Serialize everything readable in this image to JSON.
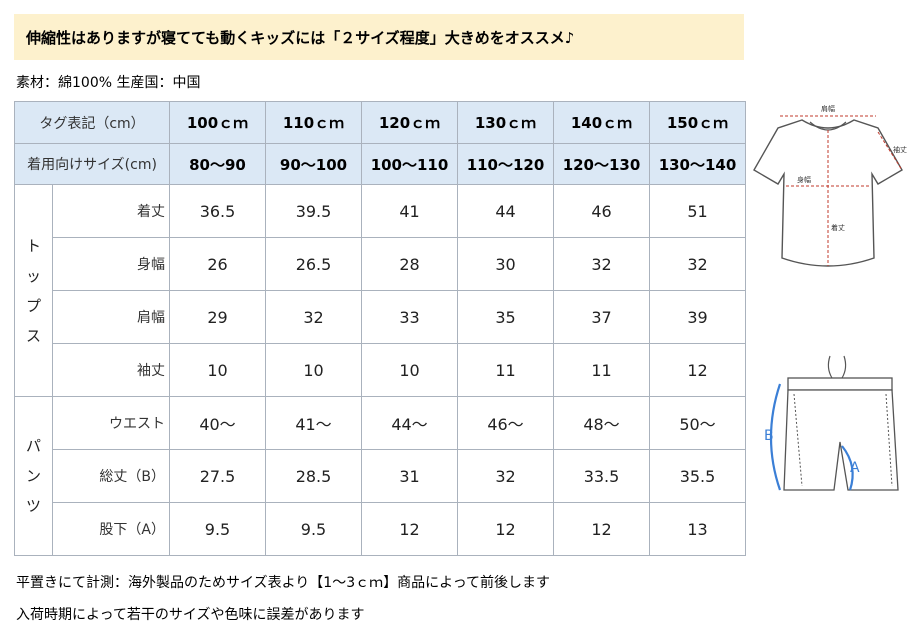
{
  "banner": {
    "text": "伸縮性はありますが寝てても動くキッズには「２サイズ程度」大きめをオススメ♪",
    "bg_color": "#fdf1cd"
  },
  "material_line": "素材：綿100%  生産国：中国",
  "table": {
    "header_bg_color": "#dbe8f5",
    "header_row": {
      "label": "タグ表記（cm）",
      "sizes": [
        "100ｃｍ",
        "110ｃｍ",
        "120ｃｍ",
        "130ｃｍ",
        "140ｃｍ",
        "150ｃｍ"
      ]
    },
    "fit_row": {
      "label": "着用向けサイズ(cm)",
      "values": [
        "80〜90",
        "90〜100",
        "100〜110",
        "110〜120",
        "120〜130",
        "130〜140"
      ]
    },
    "groups": [
      {
        "name": "トップス",
        "rows": [
          {
            "label": "着丈",
            "values": [
              "36.5",
              "39.5",
              "41",
              "44",
              "46",
              "51"
            ]
          },
          {
            "label": "身幅",
            "values": [
              "26",
              "26.5",
              "28",
              "30",
              "32",
              "32"
            ]
          },
          {
            "label": "肩幅",
            "values": [
              "29",
              "32",
              "33",
              "35",
              "37",
              "39"
            ]
          },
          {
            "label": "袖丈",
            "values": [
              "10",
              "10",
              "10",
              "11",
              "11",
              "12"
            ]
          }
        ]
      },
      {
        "name": "パンツ",
        "rows": [
          {
            "label": "ウエスト",
            "values": [
              "40〜",
              "41〜",
              "44〜",
              "46〜",
              "48〜",
              "50〜"
            ]
          },
          {
            "label": "総丈（B）",
            "values": [
              "27.5",
              "28.5",
              "31",
              "32",
              "33.5",
              "35.5"
            ]
          },
          {
            "label": "股下（A）",
            "values": [
              "9.5",
              "9.5",
              "12",
              "12",
              "12",
              "13"
            ]
          }
        ]
      }
    ]
  },
  "notes": [
    "平置きにて計測：海外製品のためサイズ表より【1〜3ｃｍ】商品によって前後します",
    "入荷時期によって若干のサイズや色味に誤差があります"
  ],
  "diagram_tshirt": {
    "labels": {
      "shoulder": "肩幅",
      "sleeve": "袖丈",
      "chest": "身幅",
      "length": "着丈"
    }
  },
  "diagram_shorts": {
    "labels": {
      "total": "B",
      "inseam": "A"
    },
    "accent_color": "#3b7fd6"
  }
}
